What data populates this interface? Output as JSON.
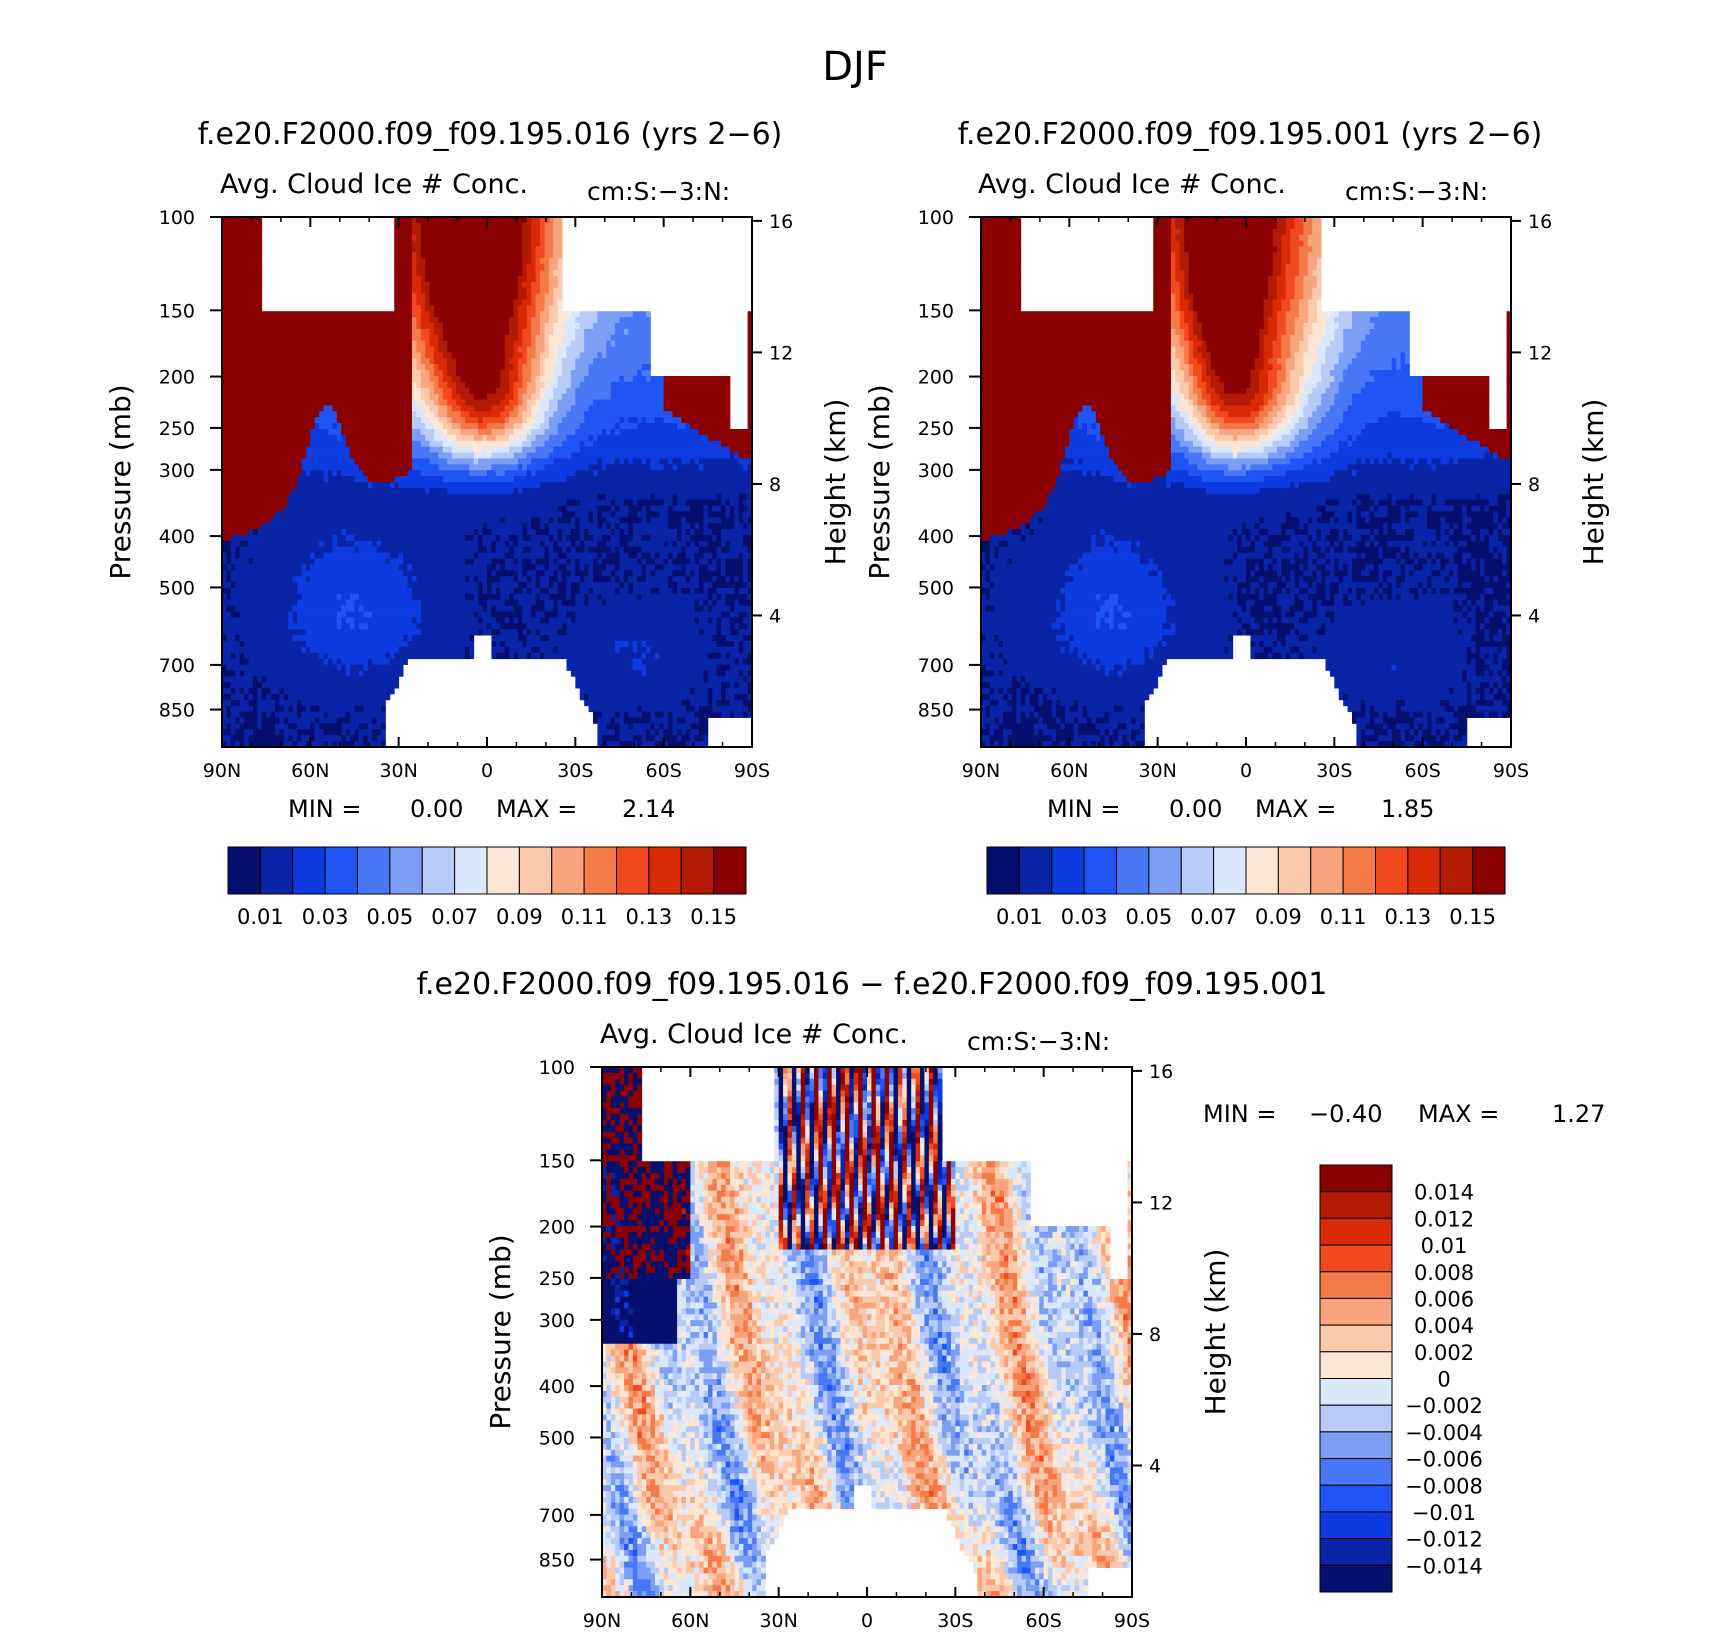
{
  "figure": {
    "title": "DJF"
  },
  "palette": {
    "fill_colors": [
      "#050f6e",
      "#0a24a8",
      "#0e3be0",
      "#1f55f5",
      "#4878f5",
      "#7c9ef5",
      "#b6cbf7",
      "#dbe7fb",
      "#fde7d4",
      "#fbc9ab",
      "#f8a47c",
      "#f57a49",
      "#f24a20",
      "#d92a08",
      "#b31a03",
      "#8b0000"
    ],
    "diff_fill_colors": [
      "#050f6e",
      "#0a24a8",
      "#0e3be0",
      "#1f55f5",
      "#4878f5",
      "#7c9ef5",
      "#b6cbf7",
      "#dbe7fb",
      "#fde7d4",
      "#fbc9ab",
      "#f8a47c",
      "#f57a49",
      "#f24a20",
      "#d92a08",
      "#b31a03",
      "#8b0000"
    ],
    "missing_color": "#ffffff"
  },
  "chart_data": [
    {
      "type": "heatmap",
      "title": "f.e20.F2000.f09_f09.195.016 (yrs 2−6)",
      "subtitle_left": "Avg. Cloud Ice # Conc.",
      "subtitle_right": "cm:S:−3:N:",
      "xlabel": "",
      "ylabel": "Pressure (mb)",
      "ylabel_right": "Height (km)",
      "x_ticks": [
        "90N",
        "60N",
        "30N",
        "0",
        "30S",
        "60S",
        "90S"
      ],
      "y_ticks": [
        "100",
        "150",
        "200",
        "250",
        "300",
        "400",
        "500",
        "700",
        "850"
      ],
      "y_right_ticks": [
        "16",
        "12",
        "8",
        "4"
      ],
      "stats": {
        "min_label": "MIN =",
        "min": "0.00",
        "max_label": "MAX =",
        "max": "2.14"
      },
      "colorbar": {
        "orientation": "horizontal",
        "labels": [
          "0.01",
          "0.03",
          "0.05",
          "0.07",
          "0.09",
          "0.11",
          "0.13",
          "0.15"
        ]
      },
      "field": "control"
    },
    {
      "type": "heatmap",
      "title": "f.e20.F2000.f09_f09.195.001 (yrs 2−6)",
      "subtitle_left": "Avg. Cloud Ice # Conc.",
      "subtitle_right": "cm:S:−3:N:",
      "xlabel": "",
      "ylabel": "Pressure (mb)",
      "ylabel_right": "Height (km)",
      "x_ticks": [
        "90N",
        "60N",
        "30N",
        "0",
        "30S",
        "60S",
        "90S"
      ],
      "y_ticks": [
        "100",
        "150",
        "200",
        "250",
        "300",
        "400",
        "500",
        "700",
        "850"
      ],
      "y_right_ticks": [
        "16",
        "12",
        "8",
        "4"
      ],
      "stats": {
        "min_label": "MIN =",
        "min": "0.00",
        "max_label": "MAX =",
        "max": "1.85"
      },
      "colorbar": {
        "orientation": "horizontal",
        "labels": [
          "0.01",
          "0.03",
          "0.05",
          "0.07",
          "0.09",
          "0.11",
          "0.13",
          "0.15"
        ]
      },
      "field": "experiment"
    },
    {
      "type": "heatmap",
      "title": "f.e20.F2000.f09_f09.195.016 − f.e20.F2000.f09_f09.195.001",
      "subtitle_left": "Avg. Cloud Ice # Conc.",
      "subtitle_right": "cm:S:−3:N:",
      "xlabel": "",
      "ylabel": "Pressure (mb)",
      "ylabel_right": "Height (km)",
      "x_ticks": [
        "90N",
        "60N",
        "30N",
        "0",
        "30S",
        "60S",
        "90S"
      ],
      "y_ticks": [
        "100",
        "150",
        "200",
        "250",
        "300",
        "400",
        "500",
        "700",
        "850"
      ],
      "y_right_ticks": [
        "16",
        "12",
        "8",
        "4"
      ],
      "stats": {
        "min_label": "MIN =",
        "min": "−0.40",
        "max_label": "MAX =",
        "max": "1.27"
      },
      "colorbar": {
        "orientation": "vertical",
        "labels": [
          "0.014",
          "0.012",
          "0.01",
          "0.008",
          "0.006",
          "0.004",
          "0.002",
          "0",
          "−0.002",
          "−0.004",
          "−0.006",
          "−0.008",
          "−0.01",
          "−0.012",
          "−0.014"
        ]
      },
      "field": "difference"
    }
  ]
}
